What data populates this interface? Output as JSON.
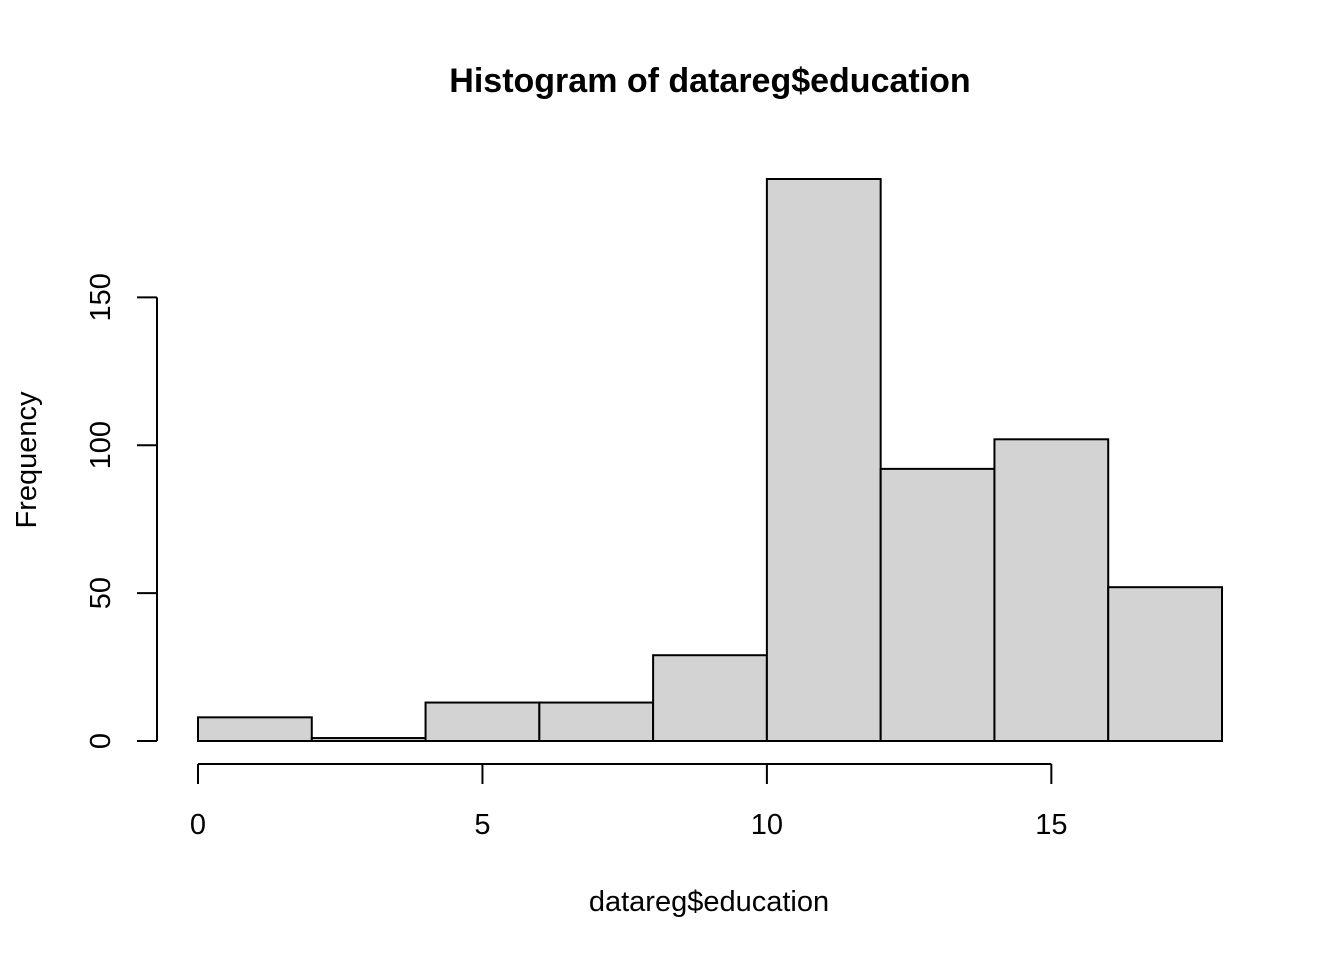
{
  "chart_data": {
    "type": "bar",
    "title": "Histogram of datareg$education",
    "xlabel": "datareg$education",
    "ylabel": "Frequency",
    "bins": [
      {
        "start": 0,
        "end": 2,
        "count": 8
      },
      {
        "start": 2,
        "end": 4,
        "count": 1
      },
      {
        "start": 4,
        "end": 6,
        "count": 13
      },
      {
        "start": 6,
        "end": 8,
        "count": 13
      },
      {
        "start": 8,
        "end": 10,
        "count": 29
      },
      {
        "start": 10,
        "end": 12,
        "count": 190
      },
      {
        "start": 12,
        "end": 14,
        "count": 92
      },
      {
        "start": 14,
        "end": 16,
        "count": 102
      },
      {
        "start": 16,
        "end": 18,
        "count": 52
      }
    ],
    "xlim": [
      0,
      18
    ],
    "ylim": [
      0,
      190
    ],
    "x_ticks": [
      0,
      5,
      10,
      15
    ],
    "y_ticks": [
      0,
      50,
      100,
      150
    ],
    "bar_fill": "#d3d3d3",
    "bar_stroke": "#000000",
    "grid": false,
    "legend": "none"
  }
}
